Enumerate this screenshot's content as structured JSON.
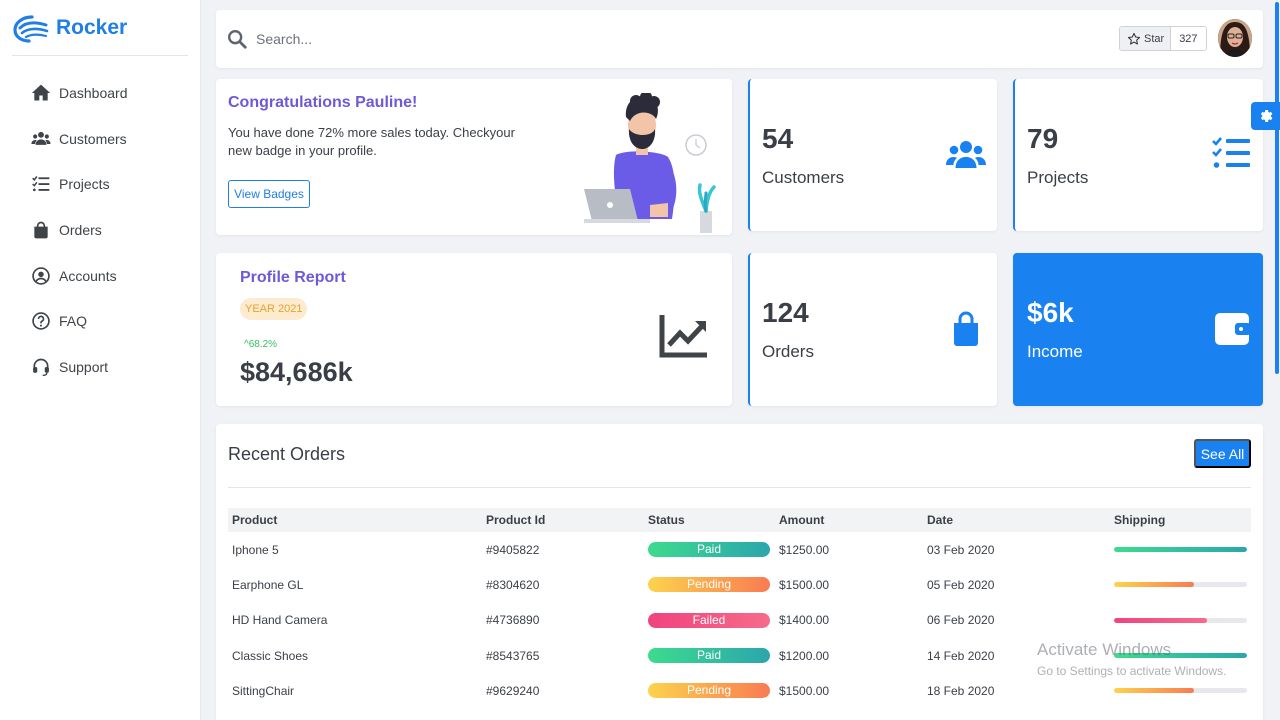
{
  "brand": {
    "name": "Rocker",
    "color": "#1f7fe6"
  },
  "sidebar": {
    "items": [
      {
        "label": "Dashboard",
        "icon": "home-icon"
      },
      {
        "label": "Customers",
        "icon": "users-icon"
      },
      {
        "label": "Projects",
        "icon": "list-check-icon"
      },
      {
        "label": "Orders",
        "icon": "shopping-bag-icon"
      },
      {
        "label": "Accounts",
        "icon": "user-circle-icon"
      },
      {
        "label": "FAQ",
        "icon": "question-circle-icon"
      },
      {
        "label": "Support",
        "icon": "headset-icon"
      }
    ]
  },
  "topbar": {
    "search_placeholder": "Search...",
    "star_label": "Star",
    "star_count": "327"
  },
  "congrats": {
    "title": "Congratulations Pauline!",
    "text": "You have done 72% more sales today. Checkyour new badge in your profile.",
    "button": "View Badges"
  },
  "stats": {
    "customers": {
      "value": "54",
      "label": "Customers",
      "icon": "users-icon"
    },
    "projects": {
      "value": "79",
      "label": "Projects",
      "icon": "list-check-icon"
    },
    "orders": {
      "value": "124",
      "label": "Orders",
      "icon": "shopping-bag-icon"
    },
    "income": {
      "value": "$6k",
      "label": "Income",
      "icon": "wallet-icon"
    }
  },
  "profile_report": {
    "title": "Profile Report",
    "badge": "YEAR 2021",
    "change": "^68.2%",
    "amount": "$84,686k",
    "icon": "chart-line-icon"
  },
  "recent_orders": {
    "title": "Recent Orders",
    "see_all": "See All",
    "columns": [
      "Product",
      "Product Id",
      "Status",
      "Amount",
      "Date",
      "Shipping"
    ],
    "rows": [
      {
        "product": "Iphone 5",
        "id": "#9405822",
        "status": "Paid",
        "amount": "$1250.00",
        "date": "03 Feb 2020",
        "shipping": 1.0
      },
      {
        "product": "Earphone GL",
        "id": "#8304620",
        "status": "Pending",
        "amount": "$1500.00",
        "date": "05 Feb 2020",
        "shipping": 0.6
      },
      {
        "product": "HD Hand Camera",
        "id": "#4736890",
        "status": "Failed",
        "amount": "$1400.00",
        "date": "06 Feb 2020",
        "shipping": 0.7
      },
      {
        "product": "Classic Shoes",
        "id": "#8543765",
        "status": "Paid",
        "amount": "$1200.00",
        "date": "14 Feb 2020",
        "shipping": 1.0
      },
      {
        "product": "SittingChair",
        "id": "#9629240",
        "status": "Pending",
        "amount": "$1500.00",
        "date": "18 Feb 2020",
        "shipping": 0.6
      }
    ]
  },
  "watermark": {
    "title": "Activate Windows",
    "subtitle": "Go to Settings to activate Windows."
  },
  "colors": {
    "primary": "#1a82f0",
    "purple": "#6f59d9",
    "paid": "#2ba6ad",
    "pending": "#f97b52",
    "failed": "#f0437f"
  }
}
